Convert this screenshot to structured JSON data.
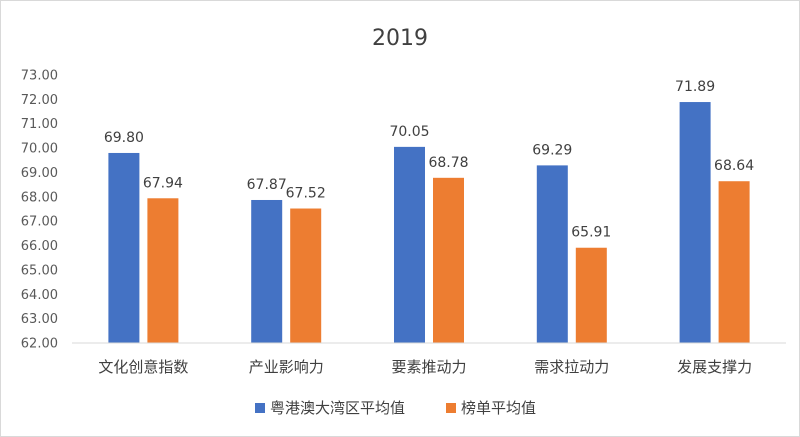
{
  "chart_data": {
    "type": "bar",
    "title": "2019",
    "xlabel": "",
    "ylabel": "",
    "ylim": [
      62.0,
      73.0
    ],
    "ytick_step": 1.0,
    "yticks": [
      "73.00",
      "72.00",
      "71.00",
      "70.00",
      "69.00",
      "68.00",
      "67.00",
      "66.00",
      "65.00",
      "64.00",
      "63.00",
      "62.00"
    ],
    "categories": [
      "文化创意指数",
      "产业影响力",
      "要素推动力",
      "需求拉动力",
      "发展支撑力"
    ],
    "series": [
      {
        "name": "粤港澳大湾区平均值",
        "color": "#4472C4",
        "values": [
          69.8,
          67.87,
          70.05,
          69.29,
          71.89
        ],
        "labels": [
          "69.80",
          "67.87",
          "70.05",
          "69.29",
          "71.89"
        ]
      },
      {
        "name": "榜单平均值",
        "color": "#ED7D31",
        "values": [
          67.94,
          67.52,
          68.78,
          65.91,
          68.64
        ],
        "labels": [
          "67.94",
          "67.52",
          "68.78",
          "65.91",
          "68.64"
        ]
      }
    ],
    "grid": false,
    "legend_position": "bottom"
  }
}
